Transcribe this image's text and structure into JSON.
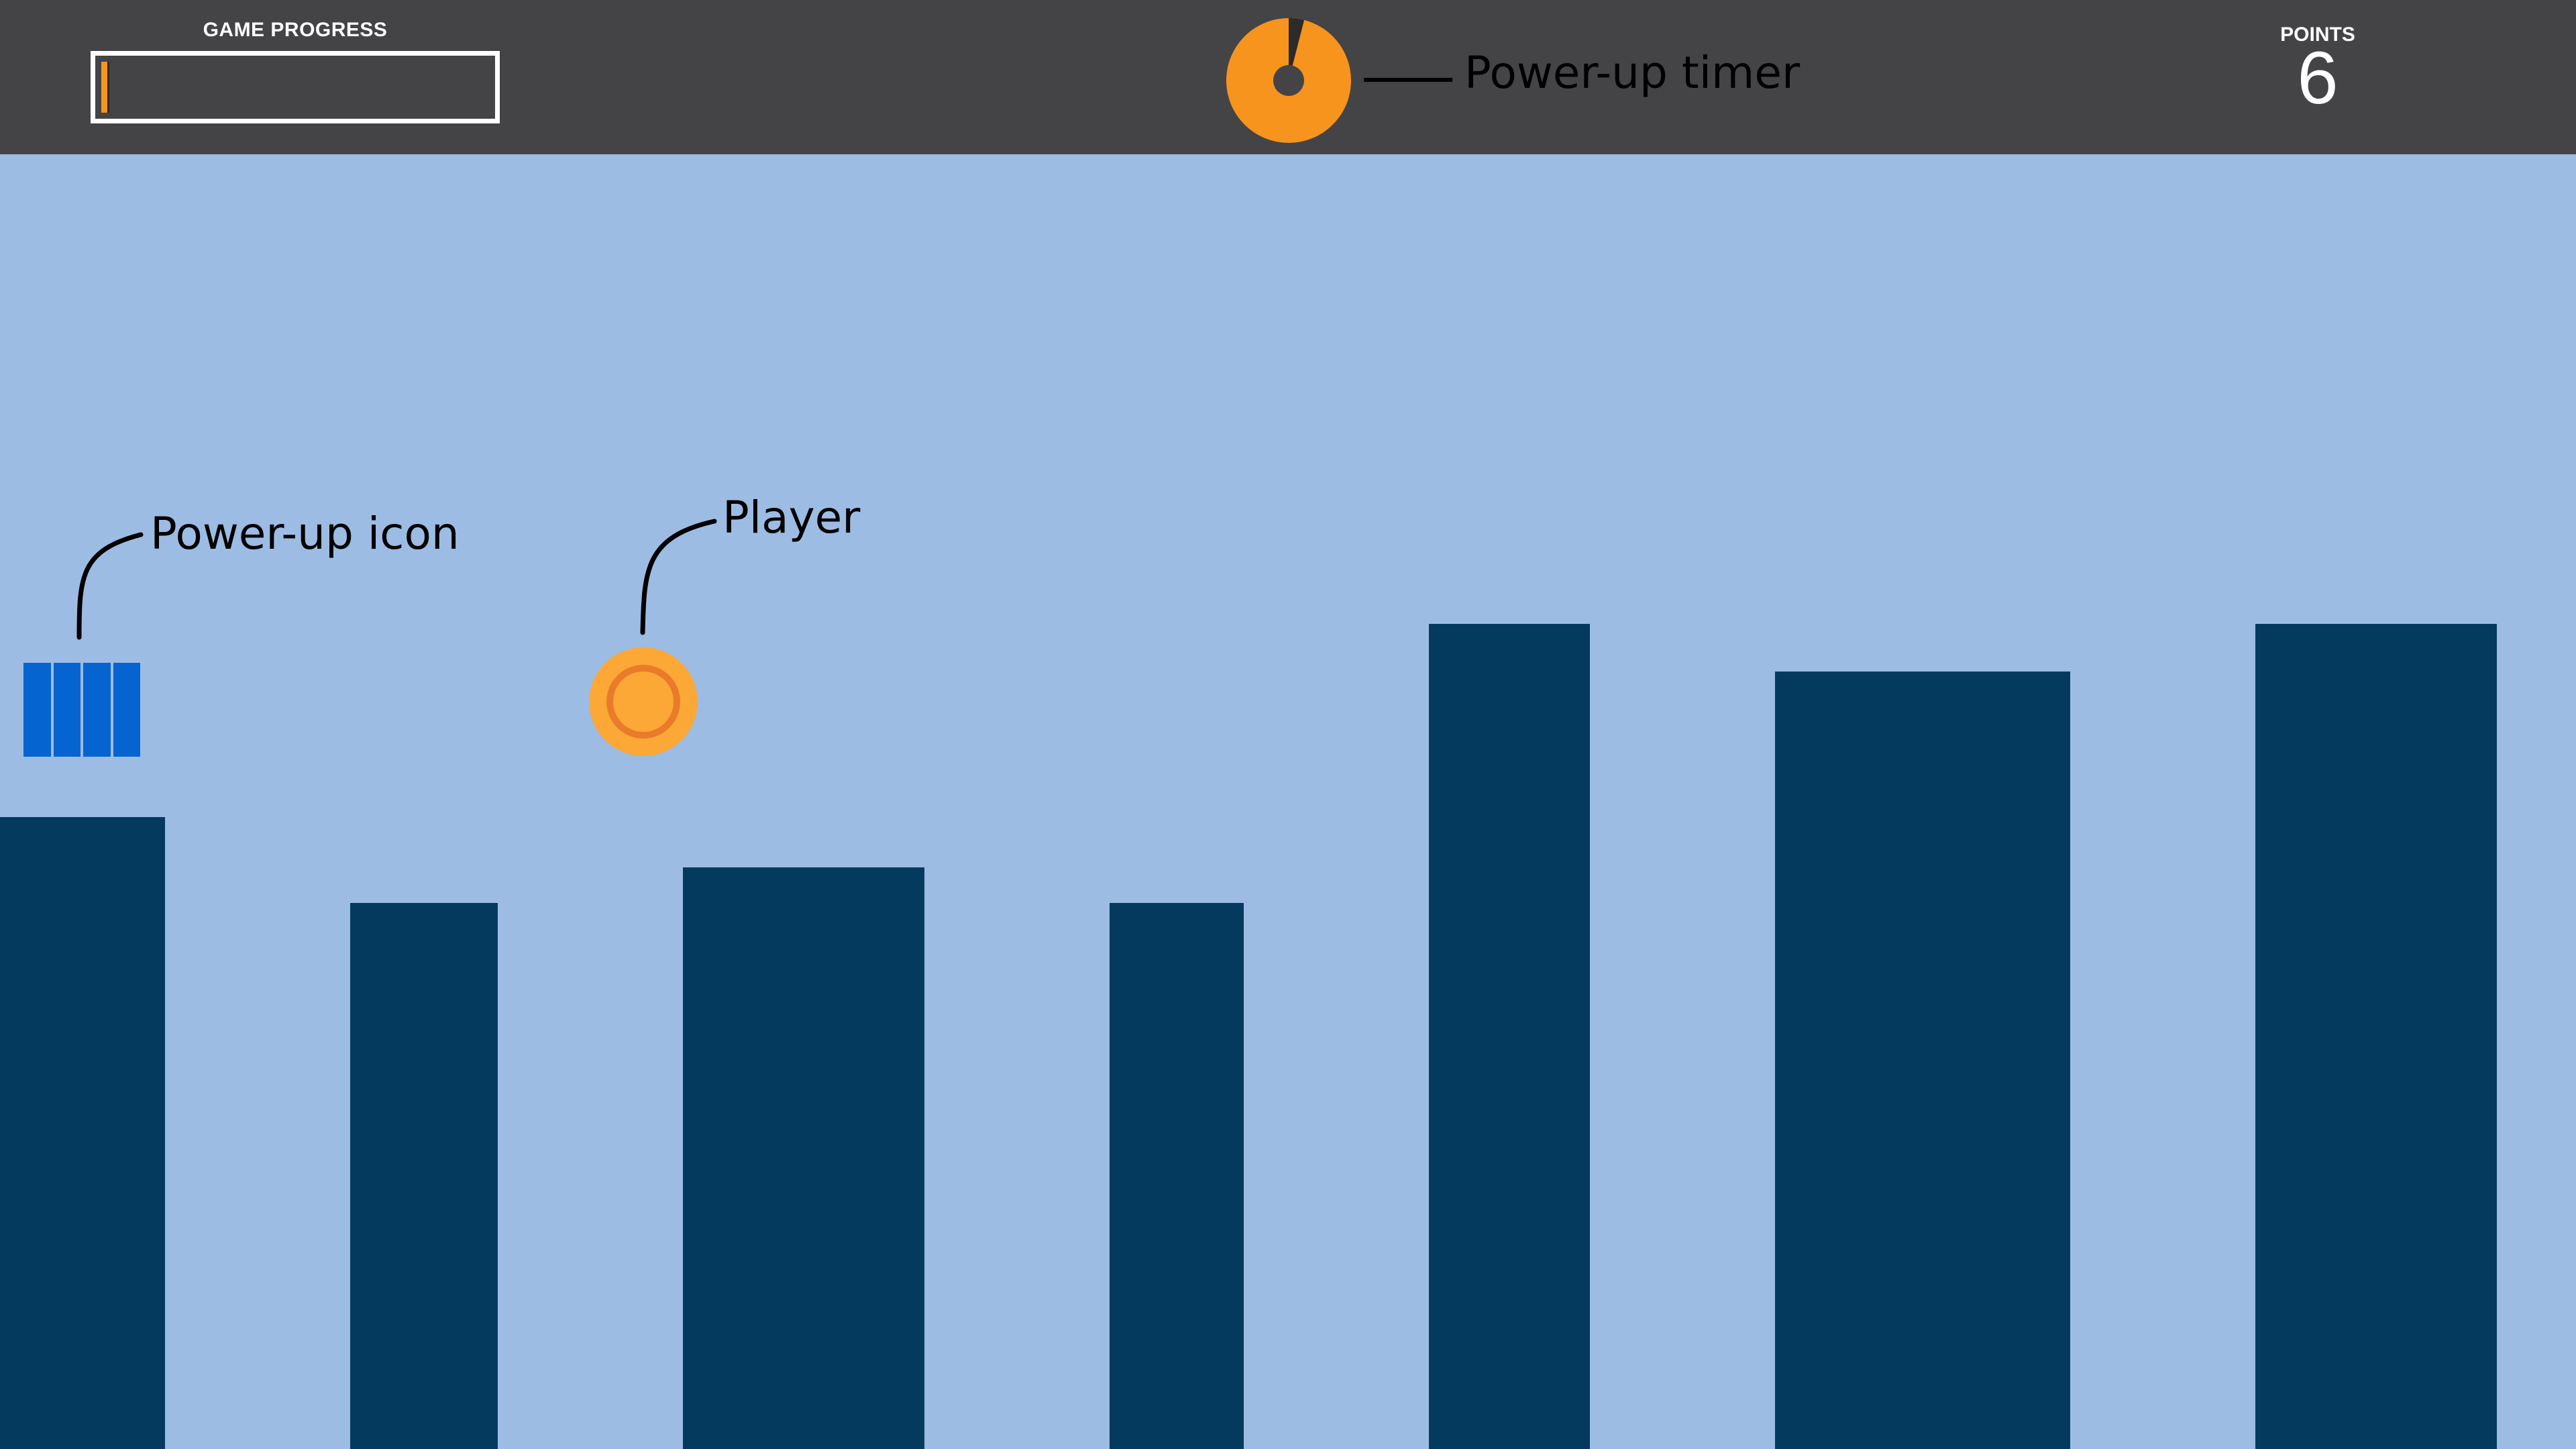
{
  "hud": {
    "progress_label": "GAME PROGRESS",
    "progress_value": 0.02,
    "timer_remaining_fraction": 0.96,
    "points_label": "POINTS",
    "points_value": "6"
  },
  "callouts": {
    "timer": "Power-up timer",
    "powerup": "Power-up icon",
    "player": "Player"
  },
  "colors": {
    "hud_bg": "#444447",
    "sky": "#9dbce3",
    "pillar": "#053a5f",
    "accent_orange": "#f7941d",
    "powerup_blue": "#0564d0",
    "player_fill": "#fba836",
    "player_ring": "#ea7b2b"
  },
  "icons": {
    "timer": "pie-timer-icon",
    "powerup": "battery-cells-icon",
    "player": "orange-ball-icon"
  }
}
